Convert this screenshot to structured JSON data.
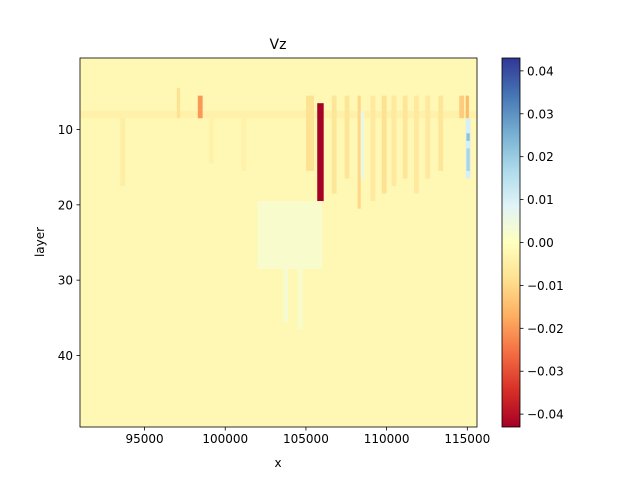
{
  "chart_data": {
    "type": "heatmap",
    "title": "Vz",
    "xlabel": "x",
    "ylabel": "layer",
    "xlim": [
      91000,
      115600
    ],
    "ylim": [
      49.5,
      0.5
    ],
    "y_inverted": true,
    "x_ticks": [
      95000,
      100000,
      105000,
      110000,
      115000
    ],
    "x_tick_labels": [
      "95000",
      "100000",
      "105000",
      "110000",
      "115000"
    ],
    "y_ticks": [
      10,
      20,
      30,
      40
    ],
    "y_tick_labels": [
      "10",
      "20",
      "30",
      "40"
    ],
    "colormap": "RdYlBu",
    "colormap_stops": [
      "#a50026",
      "#d73027",
      "#f46d43",
      "#fdae61",
      "#fee090",
      "#ffffbf",
      "#e0f3f8",
      "#abd9e9",
      "#74add1",
      "#4575b4",
      "#313695"
    ],
    "vmin": -0.043,
    "vmax": 0.043,
    "background_value": -0.002,
    "colorbar": {
      "ticks": [
        -0.04,
        -0.03,
        -0.02,
        -0.01,
        0.0,
        0.01,
        0.02,
        0.03,
        0.04
      ],
      "tick_labels": [
        "−0.04",
        "−0.03",
        "−0.02",
        "−0.01",
        "0.00",
        "0.01",
        "0.02",
        "0.03",
        "0.04"
      ]
    },
    "features": [
      {
        "x0": 91000,
        "x1": 115600,
        "layer0": 7.5,
        "layer1": 8.5,
        "value": -0.004
      },
      {
        "x0": 105700,
        "x1": 106100,
        "layer0": 6.5,
        "layer1": 19.5,
        "value": -0.043
      },
      {
        "x0": 98300,
        "x1": 98600,
        "layer0": 5.5,
        "layer1": 8.5,
        "value": -0.02
      },
      {
        "x0": 97000,
        "x1": 97200,
        "layer0": 4.5,
        "layer1": 8.5,
        "value": -0.008
      },
      {
        "x0": 105000,
        "x1": 105500,
        "layer0": 5.5,
        "layer1": 15.5,
        "value": -0.008
      },
      {
        "x0": 106600,
        "x1": 106900,
        "layer0": 5.5,
        "layer1": 18.5,
        "value": -0.007
      },
      {
        "x0": 107400,
        "x1": 107700,
        "layer0": 5.5,
        "layer1": 16.5,
        "value": -0.007
      },
      {
        "x0": 108200,
        "x1": 108400,
        "layer0": 5.5,
        "layer1": 20.5,
        "value": -0.01
      },
      {
        "x0": 108400,
        "x1": 108600,
        "layer0": 7.5,
        "layer1": 16.5,
        "value": 0.006
      },
      {
        "x0": 109000,
        "x1": 109300,
        "layer0": 5.5,
        "layer1": 19.5,
        "value": -0.006
      },
      {
        "x0": 109700,
        "x1": 110000,
        "layer0": 5.5,
        "layer1": 18.5,
        "value": -0.008
      },
      {
        "x0": 110300,
        "x1": 110600,
        "layer0": 5.5,
        "layer1": 17.5,
        "value": -0.006
      },
      {
        "x0": 111000,
        "x1": 111300,
        "layer0": 5.5,
        "layer1": 16.5,
        "value": -0.007
      },
      {
        "x0": 111700,
        "x1": 112000,
        "layer0": 5.5,
        "layer1": 18.5,
        "value": -0.006
      },
      {
        "x0": 112400,
        "x1": 112700,
        "layer0": 5.5,
        "layer1": 16.5,
        "value": -0.006
      },
      {
        "x0": 113200,
        "x1": 113500,
        "layer0": 5.5,
        "layer1": 15.5,
        "value": -0.007
      },
      {
        "x0": 114500,
        "x1": 114800,
        "layer0": 5.5,
        "layer1": 8.5,
        "value": -0.012
      },
      {
        "x0": 114900,
        "x1": 115100,
        "layer0": 5.5,
        "layer1": 8.5,
        "value": -0.015
      },
      {
        "x0": 114900,
        "x1": 115200,
        "layer0": 8.5,
        "layer1": 16.5,
        "value": 0.01
      },
      {
        "x0": 114950,
        "x1": 115150,
        "layer0": 10.5,
        "layer1": 11.5,
        "value": 0.022
      },
      {
        "x0": 114950,
        "x1": 115150,
        "layer0": 12.5,
        "layer1": 15.5,
        "value": 0.018
      },
      {
        "x0": 102000,
        "x1": 106000,
        "layer0": 19.5,
        "layer1": 28.5,
        "value": 0.002
      },
      {
        "x0": 103600,
        "x1": 103900,
        "layer0": 28.5,
        "layer1": 35.5,
        "value": 0.003
      },
      {
        "x0": 104500,
        "x1": 104800,
        "layer0": 26.5,
        "layer1": 36.5,
        "value": 0.002
      },
      {
        "x0": 93500,
        "x1": 93800,
        "layer0": 8.5,
        "layer1": 17.5,
        "value": -0.005
      },
      {
        "x0": 99000,
        "x1": 99300,
        "layer0": 8.5,
        "layer1": 14.5,
        "value": -0.004
      },
      {
        "x0": 101000,
        "x1": 101300,
        "layer0": 8.5,
        "layer1": 15.5,
        "value": -0.004
      }
    ]
  }
}
